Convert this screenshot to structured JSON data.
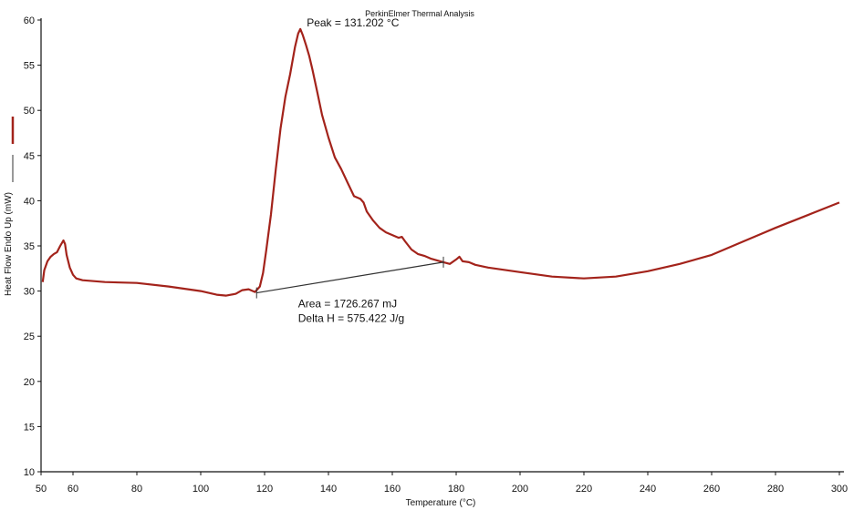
{
  "chart_data": {
    "type": "line",
    "title": "PerkinElmer Thermal Analysis",
    "xlabel": "Temperature (°C)",
    "ylabel": "Heat Flow Endo Up (mW)",
    "xlim": [
      50,
      300
    ],
    "ylim": [
      10,
      60
    ],
    "x_ticks": [
      50,
      60,
      80,
      100,
      120,
      140,
      160,
      180,
      200,
      220,
      240,
      260,
      280,
      300
    ],
    "y_ticks": [
      10,
      15,
      20,
      25,
      30,
      35,
      40,
      45,
      50,
      55,
      60
    ],
    "grid": false,
    "legend": "left",
    "series": [
      {
        "color": "#a3231b",
        "points": [
          [
            50.5,
            31.0
          ],
          [
            51,
            32.3
          ],
          [
            52,
            33.3
          ],
          [
            53,
            33.8
          ],
          [
            54,
            34.1
          ],
          [
            55,
            34.3
          ],
          [
            56,
            35.0
          ],
          [
            57,
            35.6
          ],
          [
            57.5,
            35.2
          ],
          [
            58,
            34.0
          ],
          [
            59,
            32.6
          ],
          [
            60,
            31.8
          ],
          [
            61,
            31.4
          ],
          [
            63,
            31.2
          ],
          [
            70,
            31.0
          ],
          [
            80,
            30.9
          ],
          [
            90,
            30.5
          ],
          [
            100,
            30.0
          ],
          [
            105,
            29.6
          ],
          [
            108,
            29.5
          ],
          [
            111,
            29.7
          ],
          [
            113,
            30.1
          ],
          [
            115,
            30.2
          ],
          [
            117,
            29.9
          ],
          [
            118.5,
            30.5
          ],
          [
            119.5,
            32.0
          ],
          [
            120.5,
            34.5
          ],
          [
            122,
            38.5
          ],
          [
            123.5,
            43.5
          ],
          [
            125,
            48.0
          ],
          [
            126.5,
            51.5
          ],
          [
            128,
            54.0
          ],
          [
            129.5,
            57.0
          ],
          [
            130.5,
            58.5
          ],
          [
            131.2,
            59.0
          ],
          [
            132,
            58.3
          ],
          [
            133,
            57.2
          ],
          [
            134,
            56.0
          ],
          [
            135,
            54.5
          ],
          [
            136.5,
            52.0
          ],
          [
            138,
            49.5
          ],
          [
            140,
            47.0
          ],
          [
            142,
            44.8
          ],
          [
            144,
            43.5
          ],
          [
            146,
            42.0
          ],
          [
            148,
            40.5
          ],
          [
            150,
            40.2
          ],
          [
            151,
            39.8
          ],
          [
            152,
            38.8
          ],
          [
            154,
            37.8
          ],
          [
            156,
            37.0
          ],
          [
            158,
            36.5
          ],
          [
            160,
            36.2
          ],
          [
            162,
            35.9
          ],
          [
            163,
            36.0
          ],
          [
            164,
            35.5
          ],
          [
            166,
            34.6
          ],
          [
            168,
            34.1
          ],
          [
            170,
            33.9
          ],
          [
            172,
            33.6
          ],
          [
            174,
            33.4
          ],
          [
            176,
            33.2
          ],
          [
            178,
            33.0
          ],
          [
            180,
            33.5
          ],
          [
            181,
            33.8
          ],
          [
            182,
            33.3
          ],
          [
            184,
            33.2
          ],
          [
            186,
            32.9
          ],
          [
            190,
            32.6
          ],
          [
            200,
            32.1
          ],
          [
            210,
            31.6
          ],
          [
            220,
            31.4
          ],
          [
            230,
            31.6
          ],
          [
            240,
            32.2
          ],
          [
            250,
            33.0
          ],
          [
            260,
            34.0
          ],
          [
            270,
            35.5
          ],
          [
            280,
            37.0
          ],
          [
            290,
            38.4
          ],
          [
            300,
            39.8
          ]
        ]
      }
    ],
    "baseline": {
      "color": "#333333",
      "points": [
        [
          117.5,
          29.8
        ],
        [
          176,
          33.2
        ]
      ]
    },
    "annotations": {
      "peak": "Peak = 131.202 °C",
      "area": "Area = 1726.267 mJ",
      "delta_h": "Delta H = 575.422 J/g"
    },
    "legend_entries": [
      {
        "color": "#a3231b"
      },
      {
        "color": "#333333"
      }
    ]
  }
}
